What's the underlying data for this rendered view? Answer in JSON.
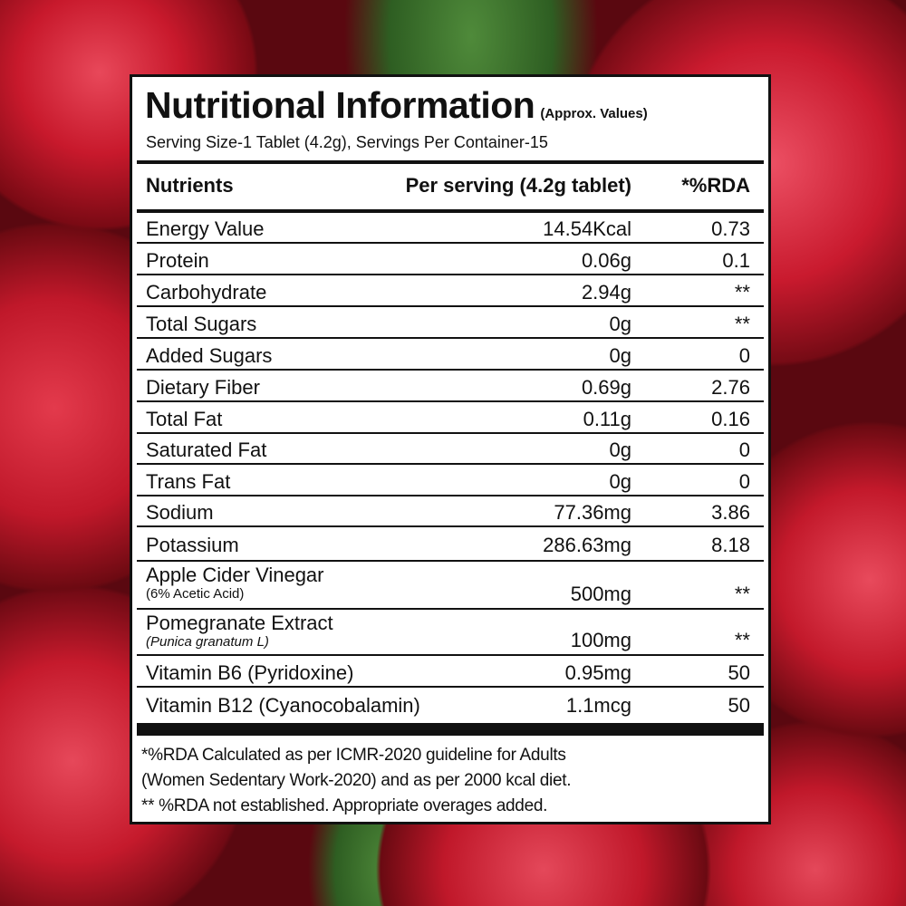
{
  "title": "Nutritional Information",
  "title_note": "(Approx. Values)",
  "serving": "Serving Size-1 Tablet (4.2g), Servings Per Container-15",
  "headers": {
    "nutrient": "Nutrients",
    "per_serving": "Per serving (4.2g tablet)",
    "rda": "*%RDA"
  },
  "rows": [
    {
      "name": "Energy Value",
      "value": "14.54Kcal",
      "rda": "0.73"
    },
    {
      "name": "Protein",
      "value": "0.06g",
      "rda": "0.1"
    },
    {
      "name": "Carbohydrate",
      "value": "2.94g",
      "rda": "**"
    },
    {
      "name": "Total Sugars",
      "value": "0g",
      "rda": "**"
    },
    {
      "name": "Added Sugars",
      "value": "0g",
      "rda": "0"
    },
    {
      "name": "Dietary Fiber",
      "value": "0.69g",
      "rda": "2.76"
    },
    {
      "name": "Total Fat",
      "value": "0.11g",
      "rda": "0.16"
    },
    {
      "name": "Saturated Fat",
      "value": "0g",
      "rda": "0"
    },
    {
      "name": "Trans Fat",
      "value": "0g",
      "rda": "0"
    },
    {
      "name": "Sodium",
      "value": "77.36mg",
      "rda": "3.86"
    },
    {
      "name": "Potassium",
      "value": "286.63mg",
      "rda": "8.18"
    },
    {
      "name": "Apple Cider Vinegar",
      "sub": "(6% Acetic Acid)",
      "value": "500mg",
      "rda": "**"
    },
    {
      "name": "Pomegranate Extract",
      "sub": "(Punica granatum L)",
      "value": "100mg",
      "rda": "**"
    },
    {
      "name": "Vitamin B6 (Pyridoxine)",
      "value": "0.95mg",
      "rda": "50"
    },
    {
      "name": "Vitamin B12 (Cyanocobalamin)",
      "value": "1.1mcg",
      "rda": "50"
    }
  ],
  "footnotes": [
    "*%RDA Calculated as per ICMR-2020 guideline for Adults",
    "(Women Sedentary Work-2020) and as per 2000 kcal diet.",
    "** %RDA not established. Appropriate overages added."
  ]
}
